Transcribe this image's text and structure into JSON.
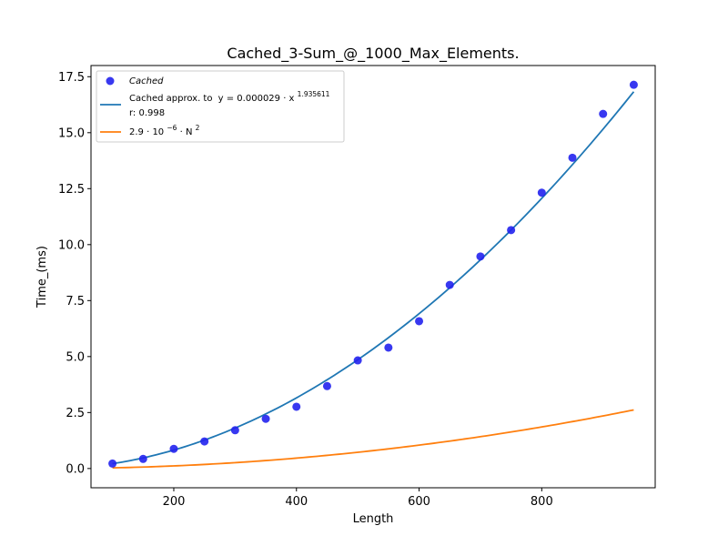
{
  "chart_data": {
    "type": "scatter",
    "title": "Cached_3-Sum_@_1000_Max_Elements.",
    "xlabel": "Length",
    "ylabel": "Time_(ms)",
    "xlim": [
      65,
      985
    ],
    "ylim": [
      -0.86,
      18.0
    ],
    "x_ticks": [
      200,
      400,
      600,
      800
    ],
    "x_tick_labels": [
      "200",
      "400",
      "600",
      "800"
    ],
    "y_ticks": [
      0.0,
      2.5,
      5.0,
      7.5,
      10.0,
      12.5,
      15.0,
      17.5
    ],
    "y_tick_labels": [
      "0.0",
      "2.5",
      "5.0",
      "7.5",
      "10.0",
      "12.5",
      "15.0",
      "17.5"
    ],
    "grid": false,
    "legend_position": "top-left",
    "series": [
      {
        "name": "Cached",
        "kind": "scatter",
        "color": "#2222ee",
        "x": [
          100,
          150,
          200,
          250,
          300,
          350,
          400,
          450,
          500,
          550,
          600,
          650,
          700,
          750,
          800,
          850,
          900,
          950
        ],
        "y": [
          0.22,
          0.43,
          0.88,
          1.21,
          1.71,
          2.22,
          2.76,
          3.68,
          4.83,
          5.4,
          6.58,
          8.2,
          9.47,
          10.65,
          12.32,
          13.88,
          15.84,
          17.14
        ]
      },
      {
        "name": "Cached approx. to",
        "kind": "line",
        "color": "#1f77b4",
        "formula": {
          "prefix": "y = 0.000029 · x",
          "exponent": "1.935611"
        },
        "coefficient": 2.9e-05,
        "exponent_value": 1.935611,
        "x_range": [
          100,
          950
        ],
        "extra_label": "r: 0.998"
      },
      {
        "name": "2.9 · 10",
        "kind": "line",
        "color": "#ff7f0e",
        "formula": {
          "base_exponent": "−6",
          "middle": " · N",
          "power": "2"
        },
        "coefficient": 2.9e-06,
        "exponent_value": 2,
        "x_range": [
          100,
          950
        ]
      }
    ]
  }
}
